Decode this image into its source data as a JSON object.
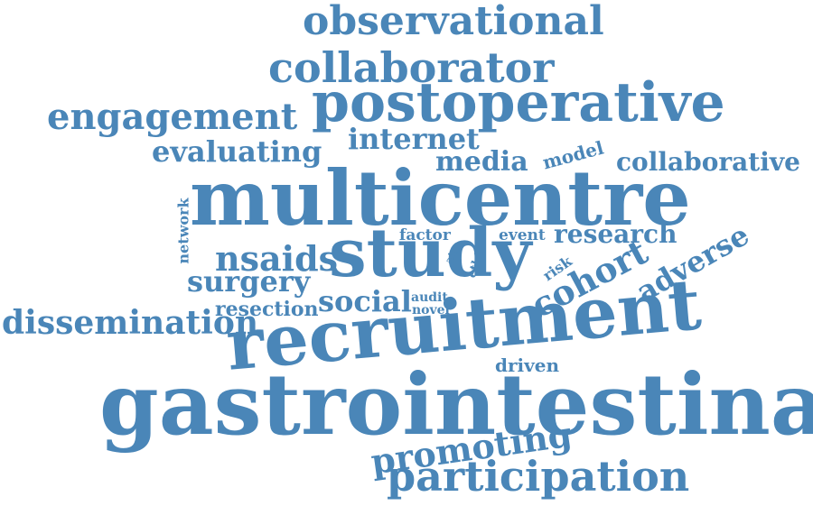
{
  "colors": {
    "word": "#4a86b8",
    "background": "#ffffff"
  },
  "words": [
    "observational",
    "collaborator",
    "engagement",
    "postoperative",
    "evaluating",
    "internet",
    "media",
    "model",
    "collaborative",
    "multicentre",
    "network",
    "factor",
    "event",
    "research",
    "nsaids",
    "study",
    "aim",
    "ethic",
    "risk",
    "adverse",
    "cohort",
    "surgery",
    "social",
    "audit",
    "novel",
    "resection",
    "dissemination",
    "recruitment",
    "driven",
    "gastrointestinal",
    "promoting",
    "participation"
  ]
}
